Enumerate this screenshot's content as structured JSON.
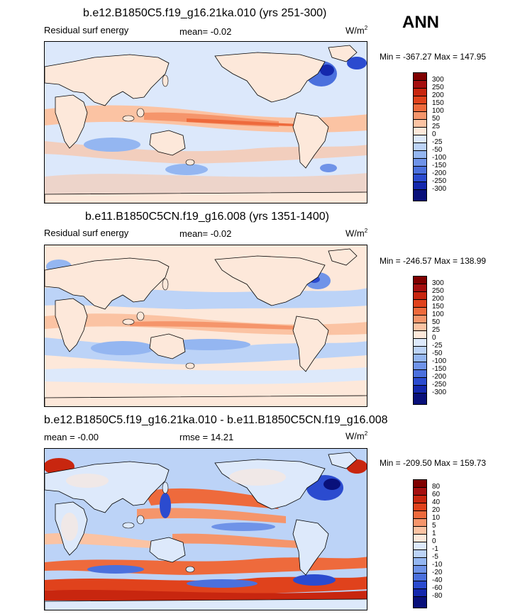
{
  "header": {
    "season": "ANN"
  },
  "panels": [
    {
      "title": "b.e12.B1850C5.f19_g16.21ka.010 (yrs 251-300)",
      "left_label": "Residual surf energy",
      "mean_text": "mean=  -0.02",
      "units_base": "W/m",
      "units_exp": "2",
      "minmax": "Min = -367.27 Max = 147.95",
      "colorbar_labels": [
        "300",
        "250",
        "200",
        "150",
        "100",
        "50",
        "25",
        "0",
        "-25",
        "-50",
        "-100",
        "-150",
        "-200",
        "-250",
        "-300"
      ]
    },
    {
      "title": "b.e11.B1850C5CN.f19_g16.008 (yrs 1351-1400)",
      "left_label": "Residual surf energy",
      "mean_text": "mean=  -0.02",
      "units_base": "W/m",
      "units_exp": "2",
      "minmax": "Min = -246.57 Max = 138.99",
      "colorbar_labels": [
        "300",
        "250",
        "200",
        "150",
        "100",
        "50",
        "25",
        "0",
        "-25",
        "-50",
        "-100",
        "-150",
        "-200",
        "-250",
        "-300"
      ]
    },
    {
      "title": "b.e12.B1850C5.f19_g16.21ka.010 - b.e11.B1850C5CN.f19_g16.008",
      "left_label": "mean =  -0.00",
      "mean_text": "rmse =  14.21",
      "units_base": "W/m",
      "units_exp": "2",
      "minmax": "Min = -209.50 Max = 159.73",
      "colorbar_labels": [
        "80",
        "60",
        "40",
        "20",
        "10",
        "5",
        "1",
        "0",
        "-1",
        "-5",
        "-10",
        "-20",
        "-40",
        "-60",
        "-80"
      ]
    }
  ],
  "colors": {
    "palette": [
      "#7f0000",
      "#a50f0f",
      "#c8260f",
      "#e0421c",
      "#ee6a3c",
      "#f5956b",
      "#fbc3a3",
      "#fde8da",
      "#dde9fb",
      "#bcd3f7",
      "#94b6f1",
      "#6f93e8",
      "#4b70dd",
      "#2b4bcf",
      "#1428ad",
      "#09107a"
    ],
    "ocean_bg": "#dce8fb",
    "land": "#fde8da"
  }
}
